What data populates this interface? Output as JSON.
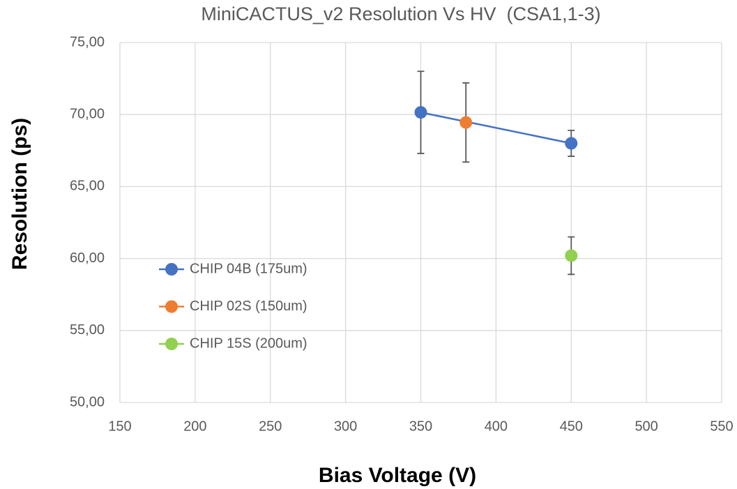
{
  "chart_data": {
    "type": "scatter",
    "title": "MiniCACTUS_v2 Resolution Vs HV  (CSA1,1-3)",
    "x_label": "Bias Voltage (V)",
    "y_label": "Resolution (ps)",
    "xlim": [
      150,
      550
    ],
    "xticks": [
      150,
      200,
      250,
      300,
      350,
      400,
      450,
      500,
      550
    ],
    "ylim": [
      50,
      75
    ],
    "yticks": [
      {
        "value": 50,
        "label": "50,00"
      },
      {
        "value": 55,
        "label": "55,00"
      },
      {
        "value": 60,
        "label": "60,00"
      },
      {
        "value": 65,
        "label": "65,00"
      },
      {
        "value": 70,
        "label": "70,00"
      },
      {
        "value": 75,
        "label": "75,00"
      }
    ],
    "grid": true,
    "legend_position": "center-left",
    "series": [
      {
        "name": "CHIP 04B (175um)",
        "color": "#4472c4",
        "x": [
          350,
          450
        ],
        "values": [
          70.15,
          68.0
        ],
        "errors": [
          2.85,
          0.9
        ]
      },
      {
        "name": "CHIP 02S (150um)",
        "color": "#ed7d31",
        "x": [
          380
        ],
        "values": [
          69.45
        ],
        "errors": [
          2.75
        ]
      },
      {
        "name": "CHIP 15S (200um)",
        "color": "#92d050",
        "x": [
          450
        ],
        "values": [
          60.2
        ],
        "errors": [
          1.3
        ]
      }
    ]
  }
}
